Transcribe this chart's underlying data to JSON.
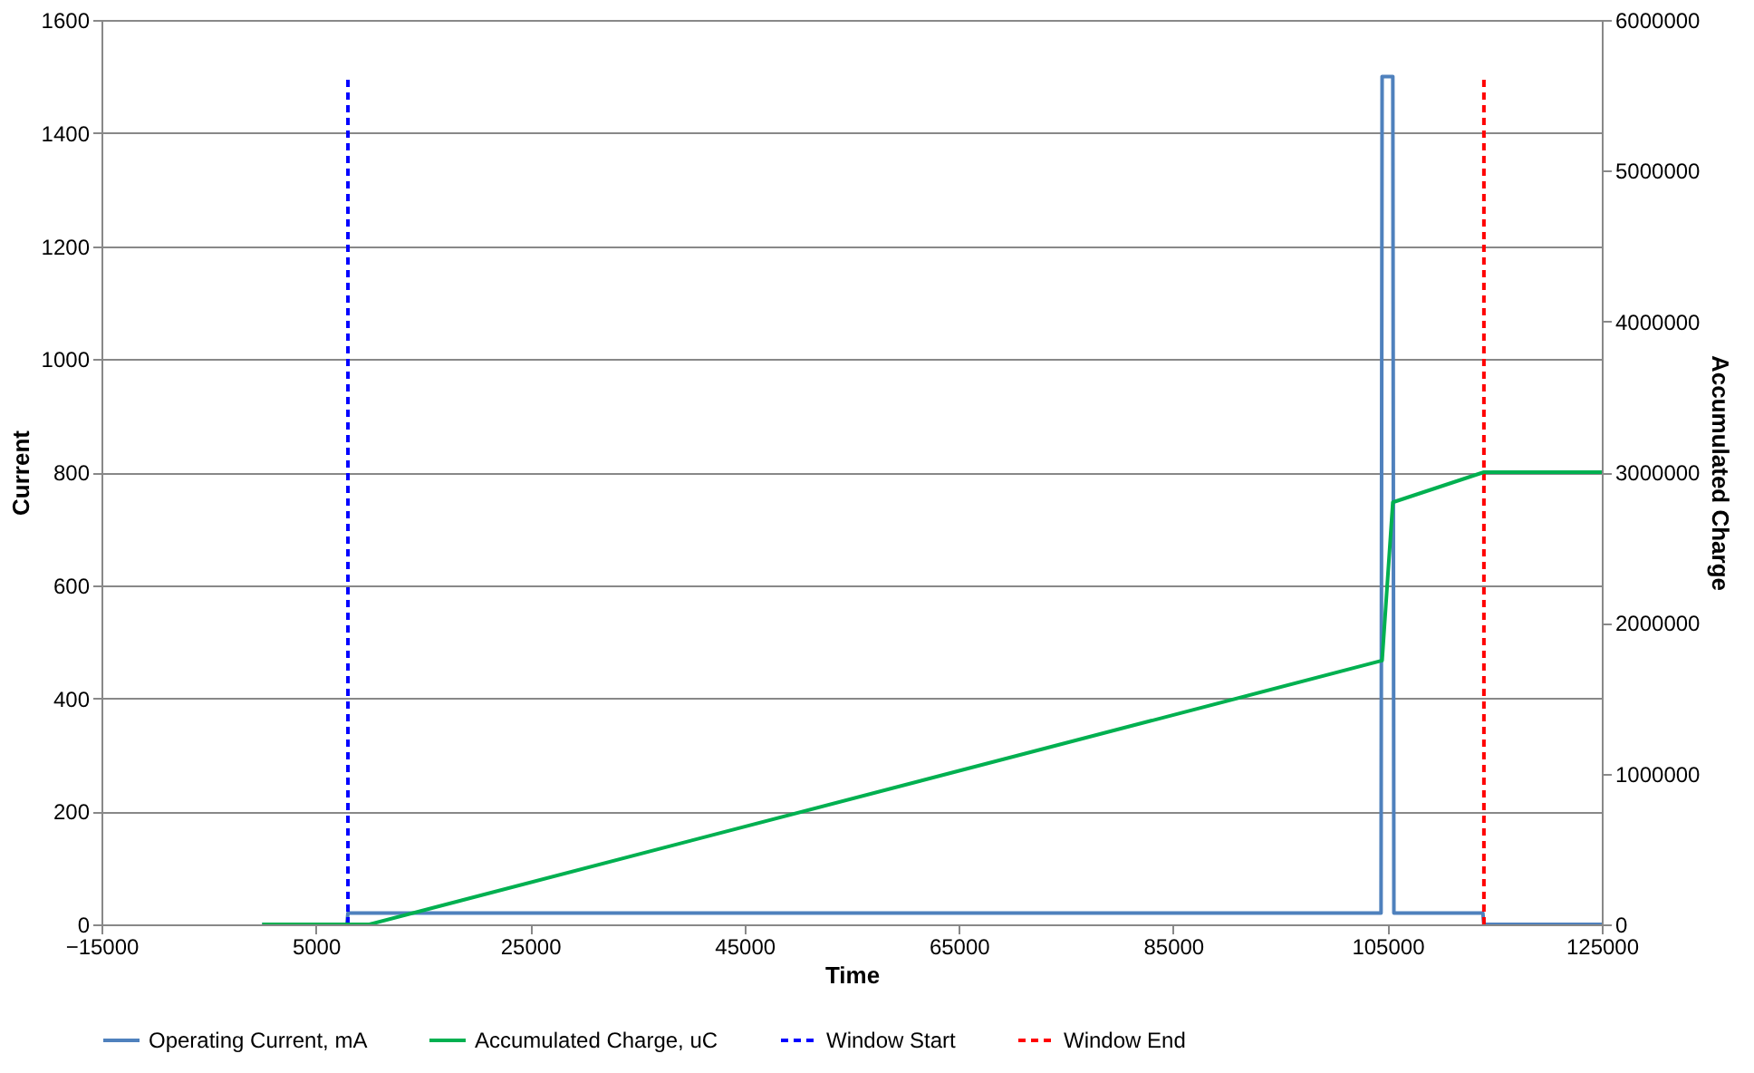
{
  "chart_data": {
    "type": "line",
    "xlabel": "Time",
    "ylabel": "Current",
    "y2label": "Accumulated Charge",
    "xlim": [
      -15000,
      125000
    ],
    "xticks": [
      -15000,
      5000,
      25000,
      45000,
      65000,
      85000,
      105000,
      125000
    ],
    "ylim": [
      0,
      1600
    ],
    "yticks": [
      0,
      200,
      400,
      600,
      800,
      1000,
      1200,
      1400,
      1600
    ],
    "y2lim": [
      0,
      6000000
    ],
    "y2ticks": [
      0,
      1000000,
      2000000,
      3000000,
      4000000,
      5000000,
      6000000
    ],
    "grid": "y",
    "legend": "bottom",
    "marker": "none",
    "series": [
      {
        "name": "Operating Current, mA",
        "color": "#4f81bd",
        "line_style": "solid",
        "x": [
          0,
          7900,
          8000,
          104400,
          104500,
          105500,
          105600,
          113900,
          114000,
          125000
        ],
        "values": [
          0,
          0,
          20,
          20,
          1500,
          1500,
          20,
          20,
          0,
          0
        ]
      },
      {
        "name": "Accumulated Charge, uC",
        "color": "#00b050",
        "line_style": "solid",
        "axis": "y2",
        "x": [
          0,
          10000,
          104500,
          105500,
          114000,
          125000
        ],
        "values": [
          0,
          0,
          1750000,
          2800000,
          3000000,
          3000000
        ]
      },
      {
        "name": "Window Start",
        "color": "#0000ff",
        "line_style": "dashed",
        "x": [
          8000,
          8000
        ],
        "values": [
          0,
          1500
        ]
      },
      {
        "name": "Window End",
        "color": "#ff0000",
        "line_style": "dashed",
        "x": [
          114000,
          114000
        ],
        "values": [
          0,
          1500
        ]
      }
    ]
  }
}
